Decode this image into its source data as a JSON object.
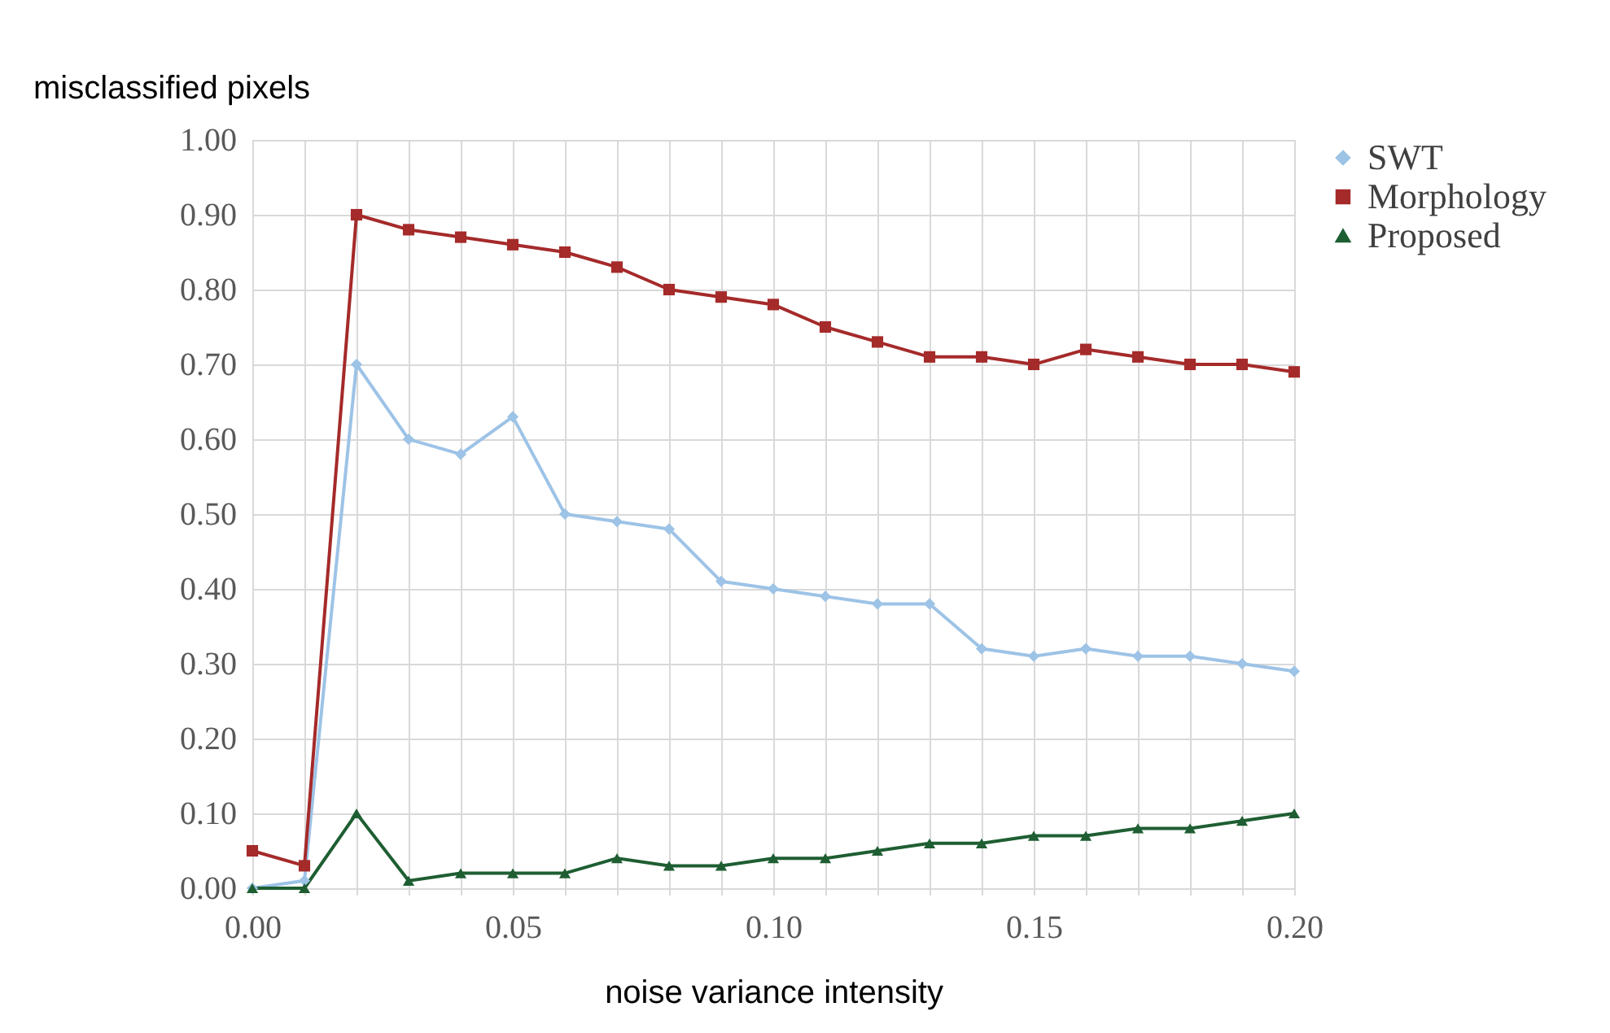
{
  "chart_data": {
    "type": "line",
    "xlabel": "noise variance intensity",
    "ylabel": "misclassified pixels",
    "x": [
      0,
      0.01,
      0.02,
      0.03,
      0.04,
      0.05,
      0.06,
      0.07,
      0.08,
      0.09,
      0.1,
      0.11,
      0.12,
      0.13,
      0.14,
      0.15,
      0.16,
      0.17,
      0.18,
      0.19,
      0.2
    ],
    "series": [
      {
        "name": "SWT",
        "color": "#9dc3e6",
        "marker": "diamond",
        "values": [
          0,
          0.01,
          0.7,
          0.6,
          0.58,
          0.63,
          0.5,
          0.49,
          0.48,
          0.41,
          0.4,
          0.39,
          0.38,
          0.38,
          0.32,
          0.31,
          0.32,
          0.31,
          0.31,
          0.3,
          0.29
        ]
      },
      {
        "name": "Morphology",
        "color": "#a52a2a",
        "marker": "square",
        "values": [
          0.05,
          0.03,
          0.9,
          0.88,
          0.87,
          0.86,
          0.85,
          0.83,
          0.8,
          0.79,
          0.78,
          0.75,
          0.73,
          0.71,
          0.71,
          0.7,
          0.72,
          0.71,
          0.7,
          0.7,
          0.69
        ]
      },
      {
        "name": "Proposed",
        "color": "#1e5e32",
        "marker": "triangle",
        "values": [
          0,
          0,
          0.1,
          0.01,
          0.02,
          0.02,
          0.02,
          0.04,
          0.03,
          0.03,
          0.04,
          0.04,
          0.05,
          0.06,
          0.06,
          0.07,
          0.07,
          0.08,
          0.08,
          0.09,
          0.1
        ]
      }
    ],
    "xlim": [
      0,
      0.2
    ],
    "xticks": [
      {
        "value": 0,
        "label": "0.00"
      },
      {
        "value": 0.01,
        "label": null
      },
      {
        "value": 0.02,
        "label": null
      },
      {
        "value": 0.03,
        "label": null
      },
      {
        "value": 0.04,
        "label": null
      },
      {
        "value": 0.05,
        "label": "0.05"
      },
      {
        "value": 0.06,
        "label": null
      },
      {
        "value": 0.07,
        "label": null
      },
      {
        "value": 0.08,
        "label": null
      },
      {
        "value": 0.09,
        "label": null
      },
      {
        "value": 0.1,
        "label": "0.10"
      },
      {
        "value": 0.11,
        "label": null
      },
      {
        "value": 0.12,
        "label": null
      },
      {
        "value": 0.13,
        "label": null
      },
      {
        "value": 0.14,
        "label": null
      },
      {
        "value": 0.15,
        "label": "0.15"
      },
      {
        "value": 0.16,
        "label": null
      },
      {
        "value": 0.17,
        "label": null
      },
      {
        "value": 0.18,
        "label": null
      },
      {
        "value": 0.19,
        "label": null
      },
      {
        "value": 0.2,
        "label": "0.20"
      }
    ],
    "ylim": [
      0,
      1
    ],
    "yticks": [
      {
        "value": 0,
        "label": "0.00"
      },
      {
        "value": 0.1,
        "label": "0.10"
      },
      {
        "value": 0.2,
        "label": "0.20"
      },
      {
        "value": 0.3,
        "label": "0.30"
      },
      {
        "value": 0.4,
        "label": "0.40"
      },
      {
        "value": 0.5,
        "label": "0.50"
      },
      {
        "value": 0.6,
        "label": "0.60"
      },
      {
        "value": 0.7,
        "label": "0.70"
      },
      {
        "value": 0.8,
        "label": "0.80"
      },
      {
        "value": 0.9,
        "label": "0.90"
      },
      {
        "value": 1,
        "label": "1.00"
      }
    ],
    "grid": true,
    "legend": "right",
    "line_style": "solid"
  }
}
